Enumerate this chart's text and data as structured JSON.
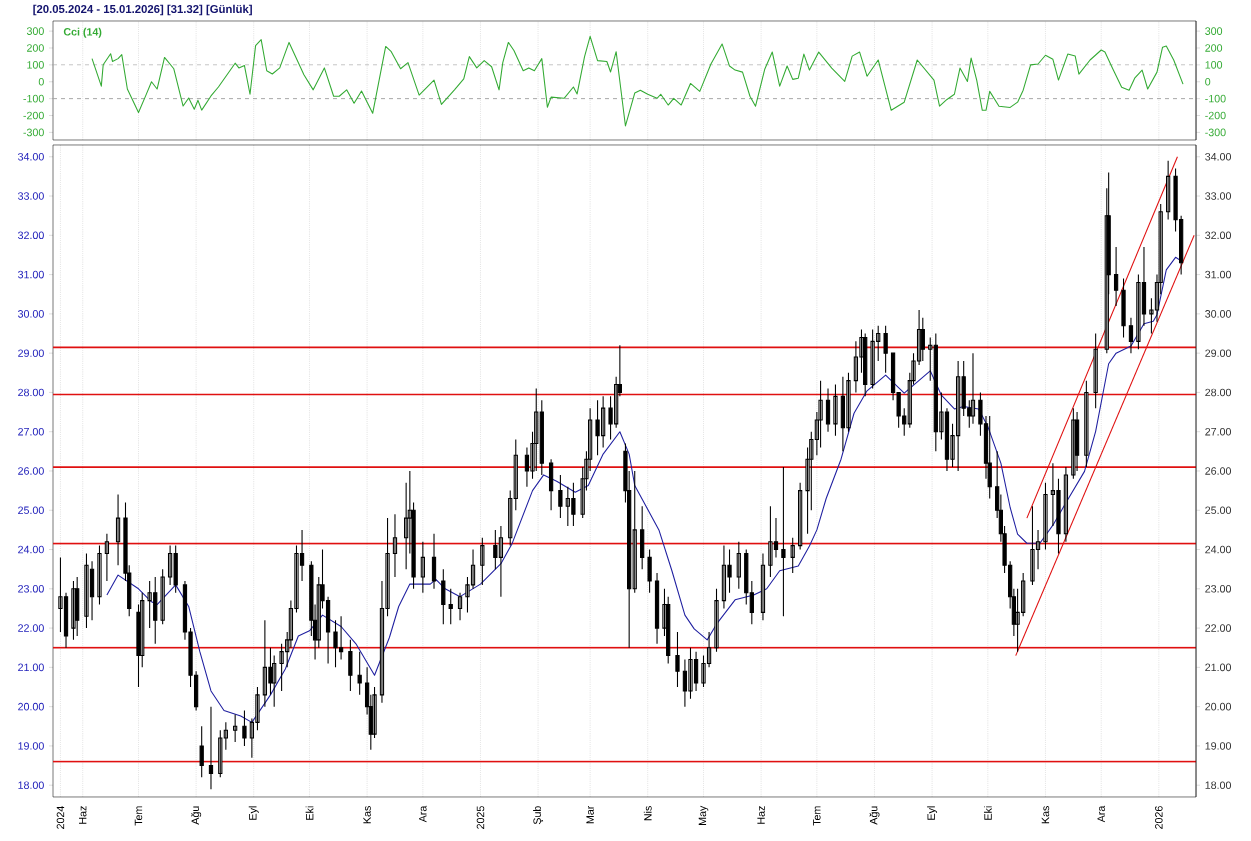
{
  "chart_data": [
    {
      "type": "line",
      "title": "[20.05.2024 - 15.01.2026]  [31.32]  [Günlük]",
      "legend": "top left",
      "grid": "x",
      "tick_labels": "y",
      "xlim": [
        "2024-05-16",
        "2026-01-21"
      ],
      "ylim": [
        -345,
        360
      ],
      "yticks": [
        -300,
        -200,
        -100,
        0,
        100,
        200,
        300
      ],
      "y2lim": [
        -345,
        360
      ],
      "y2ticks": [
        -300,
        -200,
        -100,
        0,
        100,
        200,
        300
      ],
      "xticks": [
        {
          "value": "2024-06-01",
          "label": null
        },
        {
          "value": "2024-07-01",
          "label": null
        },
        {
          "value": "2024-08-01",
          "label": null
        },
        {
          "value": "2024-09-01",
          "label": null
        },
        {
          "value": "2024-10-01",
          "label": null
        },
        {
          "value": "2024-11-01",
          "label": null
        },
        {
          "value": "2024-12-01",
          "label": null
        },
        {
          "value": "2025-01-01",
          "label": null
        },
        {
          "value": "2025-02-01",
          "label": null
        },
        {
          "value": "2025-03-01",
          "label": null
        },
        {
          "value": "2025-04-01",
          "label": null
        },
        {
          "value": "2025-05-01",
          "label": null
        },
        {
          "value": "2025-06-01",
          "label": null
        },
        {
          "value": "2025-07-01",
          "label": null
        },
        {
          "value": "2025-08-01",
          "label": null
        },
        {
          "value": "2025-09-01",
          "label": null
        },
        {
          "value": "2025-10-01",
          "label": null
        },
        {
          "value": "2025-11-01",
          "label": null
        },
        {
          "value": "2025-12-01",
          "label": null
        },
        {
          "value": "2026-01-01",
          "label": null
        }
      ],
      "ref_lines": [
        {
          "axis": "y",
          "value": 100,
          "label": null,
          "color": "#a0a0a0",
          "line_style": "dashed"
        },
        {
          "axis": "y",
          "value": -100,
          "label": null,
          "color": "#a0a0a0",
          "line_style": "dashed"
        }
      ],
      "x": [
        "2024-06-06",
        "2024-06-11",
        "2024-06-12",
        "2024-06-16",
        "2024-06-17",
        "2024-06-20",
        "2024-06-22",
        "2024-06-25",
        "2024-07-01",
        "2024-07-05",
        "2024-07-08",
        "2024-07-11",
        "2024-07-15",
        "2024-07-20",
        "2024-07-25",
        "2024-07-28",
        "2024-07-31",
        "2024-08-02",
        "2024-08-04",
        "2024-08-09",
        "2024-08-13",
        "2024-08-22",
        "2024-08-24",
        "2024-08-27",
        "2024-08-30",
        "2024-09-02",
        "2024-09-05",
        "2024-09-08",
        "2024-09-11",
        "2024-09-15",
        "2024-09-20",
        "2024-09-28",
        "2024-10-03",
        "2024-10-09",
        "2024-10-14",
        "2024-10-17",
        "2024-10-21",
        "2024-10-25",
        "2024-10-29",
        "2024-11-04",
        "2024-11-11",
        "2024-11-14",
        "2024-11-19",
        "2024-11-23",
        "2024-11-29",
        "2024-12-07",
        "2024-12-11",
        "2024-12-18",
        "2024-12-23",
        "2024-12-26",
        "2024-12-30",
        "2025-01-03",
        "2025-01-07",
        "2025-01-11",
        "2025-01-13",
        "2025-01-16",
        "2025-01-19",
        "2025-01-24",
        "2025-01-27",
        "2025-01-30",
        "2025-02-03",
        "2025-02-06",
        "2025-02-08",
        "2025-02-15",
        "2025-02-20",
        "2025-02-22",
        "2025-02-26",
        "2025-03-01",
        "2025-03-05",
        "2025-03-10",
        "2025-03-12",
        "2025-03-15",
        "2025-03-20",
        "2025-03-25",
        "2025-03-28",
        "2025-04-01",
        "2025-04-06",
        "2025-04-08",
        "2025-04-12",
        "2025-04-15",
        "2025-04-19",
        "2025-04-24",
        "2025-04-29",
        "2025-05-05",
        "2025-05-11",
        "2025-05-15",
        "2025-05-18",
        "2025-05-22",
        "2025-05-26",
        "2025-05-29",
        "2025-06-03",
        "2025-06-07",
        "2025-06-11",
        "2025-06-15",
        "2025-06-18",
        "2025-06-21",
        "2025-06-24",
        "2025-06-27",
        "2025-07-02",
        "2025-07-09",
        "2025-07-16",
        "2025-07-20",
        "2025-07-24",
        "2025-07-28",
        "2025-08-03",
        "2025-08-10",
        "2025-08-17",
        "2025-08-24",
        "2025-09-02",
        "2025-09-05",
        "2025-09-09",
        "2025-09-13",
        "2025-09-16",
        "2025-09-20",
        "2025-09-22",
        "2025-09-25",
        "2025-09-28",
        "2025-09-30",
        "2025-10-02",
        "2025-10-07",
        "2025-10-13",
        "2025-10-17",
        "2025-10-20",
        "2025-10-24",
        "2025-10-28",
        "2025-11-01",
        "2025-11-05",
        "2025-11-08",
        "2025-11-13",
        "2025-11-17",
        "2025-11-19",
        "2025-11-25",
        "2025-12-01",
        "2025-12-03",
        "2025-12-07",
        "2025-12-12",
        "2025-12-16",
        "2025-12-19",
        "2025-12-23",
        "2025-12-26",
        "2025-12-31",
        "2026-01-03",
        "2026-01-05",
        "2026-01-09",
        "2026-01-14"
      ],
      "series": [
        {
          "name": "Cci (14)",
          "color": "#33aa33",
          "values": [
            137,
            -26,
            101,
            166,
            120,
            137,
            161,
            -43,
            -182,
            -79,
            0,
            -43,
            144,
            77,
            -144,
            -96,
            -163,
            -110,
            -168,
            -84,
            -31,
            110,
            82,
            96,
            -74,
            214,
            250,
            65,
            46,
            82,
            233,
            41,
            -48,
            82,
            -86,
            -86,
            -48,
            -127,
            -55,
            -187,
            209,
            178,
            77,
            113,
            -79,
            10,
            -134,
            -48,
            17,
            149,
            82,
            125,
            89,
            -48,
            113,
            233,
            185,
            65,
            82,
            65,
            137,
            -151,
            -91,
            -98,
            -31,
            -72,
            149,
            269,
            125,
            120,
            58,
            178,
            -262,
            -67,
            -50,
            -74,
            -98,
            -74,
            -138,
            -98,
            -138,
            -10,
            -57,
            105,
            224,
            93,
            69,
            57,
            -86,
            -145,
            76,
            176,
            -26,
            93,
            14,
            21,
            164,
            69,
            176,
            81,
            2,
            152,
            176,
            33,
            129,
            -169,
            -121,
            129,
            10,
            -145,
            -105,
            -74,
            81,
            2,
            140,
            10,
            -169,
            -169,
            -57,
            -145,
            -152,
            -121,
            -50,
            100,
            105,
            157,
            133,
            10,
            164,
            152,
            45,
            129,
            188,
            176,
            81,
            -33,
            -50,
            21,
            69,
            -43,
            57,
            205,
            212,
            129,
            -14
          ]
        }
      ]
    },
    {
      "type": "candlestick",
      "color": "#000000",
      "grid": "x",
      "xlim": [
        "2024-05-16",
        "2026-01-21"
      ],
      "ylim": [
        17.7,
        34.3
      ],
      "yticks": [
        {
          "value": 18,
          "label": "18.00"
        },
        {
          "value": 19,
          "label": "19.00"
        },
        {
          "value": 20,
          "label": "20.00"
        },
        {
          "value": 21,
          "label": "21.00"
        },
        {
          "value": 22,
          "label": "22.00"
        },
        {
          "value": 23,
          "label": "23.00"
        },
        {
          "value": 24,
          "label": "24.00"
        },
        {
          "value": 25,
          "label": "25.00"
        },
        {
          "value": 26,
          "label": "26.00"
        },
        {
          "value": 27,
          "label": "27.00"
        },
        {
          "value": 28,
          "label": "28.00"
        },
        {
          "value": 29,
          "label": "29.00"
        },
        {
          "value": 30,
          "label": "30.00"
        },
        {
          "value": 31,
          "label": "31.00"
        },
        {
          "value": 32,
          "label": "32.00"
        },
        {
          "value": 33,
          "label": "33.00"
        },
        {
          "value": 34,
          "label": "34.00"
        }
      ],
      "y2lim": [
        17.7,
        34.3
      ],
      "y2ticks": [
        {
          "value": 18,
          "label": "18.00"
        },
        {
          "value": 19,
          "label": "19.00"
        },
        {
          "value": 20,
          "label": "20.00"
        },
        {
          "value": 21,
          "label": "21.00"
        },
        {
          "value": 22,
          "label": "22.00"
        },
        {
          "value": 23,
          "label": "23.00"
        },
        {
          "value": 24,
          "label": "24.00"
        },
        {
          "value": 25,
          "label": "25.00"
        },
        {
          "value": 26,
          "label": "26.00"
        },
        {
          "value": 27,
          "label": "27.00"
        },
        {
          "value": 28,
          "label": "28.00"
        },
        {
          "value": 29,
          "label": "29.00"
        },
        {
          "value": 30,
          "label": "30.00"
        },
        {
          "value": 31,
          "label": "31.00"
        },
        {
          "value": 32,
          "label": "32.00"
        },
        {
          "value": 33,
          "label": "33.00"
        },
        {
          "value": 34,
          "label": "34.00"
        }
      ],
      "xticks": [
        {
          "value": "2024-05-20",
          "label": "2024"
        },
        {
          "value": "2024-06-01",
          "label": "Haz"
        },
        {
          "value": "2024-07-01",
          "label": "Tem"
        },
        {
          "value": "2024-08-01",
          "label": "Ağu"
        },
        {
          "value": "2024-09-01",
          "label": "Eyl"
        },
        {
          "value": "2024-10-01",
          "label": "Eki"
        },
        {
          "value": "2024-11-01",
          "label": "Kas"
        },
        {
          "value": "2024-12-01",
          "label": "Ara"
        },
        {
          "value": "2025-01-01",
          "label": "2025"
        },
        {
          "value": "2025-02-01",
          "label": "Şub"
        },
        {
          "value": "2025-03-01",
          "label": "Mar"
        },
        {
          "value": "2025-04-01",
          "label": "Nis"
        },
        {
          "value": "2025-05-01",
          "label": "May"
        },
        {
          "value": "2025-06-01",
          "label": "Haz"
        },
        {
          "value": "2025-07-01",
          "label": "Tem"
        },
        {
          "value": "2025-08-01",
          "label": "Ağu"
        },
        {
          "value": "2025-09-01",
          "label": "Eyl"
        },
        {
          "value": "2025-10-01",
          "label": "Eki"
        },
        {
          "value": "2025-11-01",
          "label": "Kas"
        },
        {
          "value": "2025-12-01",
          "label": "Ara"
        },
        {
          "value": "2026-01-01",
          "label": "2026"
        }
      ],
      "ref_lines": [
        {
          "axis": "y",
          "value": 29.15,
          "label": null,
          "color": "#e01010"
        },
        {
          "axis": "y",
          "value": 27.95,
          "label": null,
          "color": "#e01010"
        },
        {
          "axis": "y",
          "value": 26.1,
          "label": null,
          "color": "#e01010"
        },
        {
          "axis": "y",
          "value": 24.15,
          "label": null,
          "color": "#e01010"
        },
        {
          "axis": "y",
          "value": 21.5,
          "label": null,
          "color": "#e01010"
        },
        {
          "axis": "y",
          "value": 18.6,
          "label": null,
          "color": "#e01010"
        }
      ],
      "x": [
        "2024-05-20",
        "2024-05-23",
        "2024-05-27",
        "2024-05-29",
        "2024-06-03",
        "2024-06-06",
        "2024-06-10",
        "2024-06-14",
        "2024-06-20",
        "2024-06-24",
        "2024-06-26",
        "2024-07-01",
        "2024-07-03",
        "2024-07-07",
        "2024-07-10",
        "2024-07-14",
        "2024-07-18",
        "2024-07-21",
        "2024-07-26",
        "2024-07-29",
        "2024-08-01",
        "2024-08-04",
        "2024-08-09",
        "2024-08-14",
        "2024-08-17",
        "2024-08-22",
        "2024-08-27",
        "2024-08-31",
        "2024-09-03",
        "2024-09-07",
        "2024-09-10",
        "2024-09-12",
        "2024-09-16",
        "2024-09-19",
        "2024-09-21",
        "2024-09-24",
        "2024-09-27",
        "2024-10-02",
        "2024-10-04",
        "2024-10-06",
        "2024-10-08",
        "2024-10-11",
        "2024-10-15",
        "2024-10-18",
        "2024-10-23",
        "2024-10-28",
        "2024-11-01",
        "2024-11-03",
        "2024-11-05",
        "2024-11-09",
        "2024-11-12",
        "2024-11-16",
        "2024-11-22",
        "2024-11-24",
        "2024-11-26",
        "2024-12-01",
        "2024-12-07",
        "2024-12-12",
        "2024-12-16",
        "2024-12-21",
        "2024-12-25",
        "2024-12-28",
        "2025-01-02",
        "2025-01-09",
        "2025-01-12",
        "2025-01-17",
        "2025-01-20",
        "2025-01-26",
        "2025-01-29",
        "2025-01-31",
        "2025-02-03",
        "2025-02-08",
        "2025-02-13",
        "2025-02-17",
        "2025-02-20",
        "2025-02-25",
        "2025-02-27",
        "2025-03-01",
        "2025-03-05",
        "2025-03-08",
        "2025-03-12",
        "2025-03-15",
        "2025-03-17",
        "2025-03-20",
        "2025-03-22",
        "2025-03-25",
        "2025-03-29",
        "2025-04-02",
        "2025-04-06",
        "2025-04-10",
        "2025-04-12",
        "2025-04-17",
        "2025-04-21",
        "2025-04-24",
        "2025-04-27",
        "2025-05-01",
        "2025-05-04",
        "2025-05-08",
        "2025-05-12",
        "2025-05-15",
        "2025-05-20",
        "2025-05-24",
        "2025-05-27",
        "2025-06-02",
        "2025-06-06",
        "2025-06-09",
        "2025-06-13",
        "2025-06-18",
        "2025-06-22",
        "2025-06-26",
        "2025-06-28",
        "2025-07-01",
        "2025-07-03",
        "2025-07-07",
        "2025-07-11",
        "2025-07-15",
        "2025-07-18",
        "2025-07-22",
        "2025-07-25",
        "2025-07-27",
        "2025-07-31",
        "2025-08-03",
        "2025-08-07",
        "2025-08-11",
        "2025-08-14",
        "2025-08-17",
        "2025-08-20",
        "2025-08-22",
        "2025-08-25",
        "2025-08-27",
        "2025-08-31",
        "2025-09-03",
        "2025-09-06",
        "2025-09-09",
        "2025-09-12",
        "2025-09-15",
        "2025-09-18",
        "2025-09-21",
        "2025-09-23",
        "2025-09-27",
        "2025-09-30",
        "2025-10-02",
        "2025-10-06",
        "2025-10-08",
        "2025-10-10",
        "2025-10-13",
        "2025-10-15",
        "2025-10-17",
        "2025-10-20",
        "2025-10-25",
        "2025-10-28",
        "2025-11-01",
        "2025-11-05",
        "2025-11-08",
        "2025-11-12",
        "2025-11-16",
        "2025-11-18",
        "2025-11-23",
        "2025-11-28",
        "2025-12-04",
        "2025-12-05",
        "2025-12-09",
        "2025-12-13",
        "2025-12-17",
        "2025-12-21",
        "2025-12-24",
        "2025-12-28",
        "2025-12-31",
        "2026-01-02",
        "2026-01-06",
        "2026-01-10",
        "2026-01-13"
      ],
      "ohlc": [
        [
          22.5,
          23.8,
          21.9,
          22.8
        ],
        [
          22.8,
          22.9,
          21.5,
          21.8
        ],
        [
          22.0,
          23.2,
          21.7,
          23.0
        ],
        [
          23.0,
          23.3,
          21.8,
          22.2
        ],
        [
          22.3,
          23.9,
          22.0,
          23.6
        ],
        [
          23.5,
          23.7,
          22.2,
          22.8
        ],
        [
          22.8,
          24.1,
          22.6,
          23.9
        ],
        [
          23.9,
          24.4,
          23.2,
          24.2
        ],
        [
          24.2,
          25.4,
          23.6,
          24.8
        ],
        [
          24.8,
          25.2,
          23.2,
          23.4
        ],
        [
          23.4,
          23.6,
          22.3,
          22.5
        ],
        [
          22.4,
          22.6,
          20.5,
          21.3
        ],
        [
          21.3,
          22.9,
          21.0,
          22.7
        ],
        [
          22.7,
          23.2,
          22.0,
          22.9
        ],
        [
          22.9,
          23.3,
          21.6,
          22.2
        ],
        [
          22.2,
          23.5,
          22.1,
          23.3
        ],
        [
          23.3,
          24.1,
          23.1,
          23.9
        ],
        [
          23.9,
          24.1,
          22.9,
          23.1
        ],
        [
          23.1,
          23.2,
          21.7,
          21.9
        ],
        [
          21.9,
          22.0,
          20.5,
          20.8
        ],
        [
          20.8,
          20.9,
          19.9,
          20.0
        ],
        [
          19.0,
          19.5,
          18.2,
          18.5
        ],
        [
          18.5,
          20.0,
          17.9,
          18.3
        ],
        [
          18.3,
          19.4,
          18.2,
          19.2
        ],
        [
          19.2,
          19.6,
          18.9,
          19.4
        ],
        [
          19.4,
          19.8,
          19.1,
          19.5
        ],
        [
          19.5,
          19.9,
          19.0,
          19.2
        ],
        [
          19.2,
          19.7,
          18.7,
          19.6
        ],
        [
          19.6,
          20.5,
          19.4,
          20.3
        ],
        [
          20.3,
          22.2,
          20.0,
          21.0
        ],
        [
          21.0,
          21.5,
          20.3,
          20.6
        ],
        [
          20.6,
          21.3,
          20.0,
          21.1
        ],
        [
          21.1,
          21.6,
          20.4,
          21.4
        ],
        [
          21.4,
          21.9,
          21.0,
          21.7
        ],
        [
          21.7,
          22.7,
          21.5,
          22.5
        ],
        [
          22.5,
          24.1,
          22.4,
          23.9
        ],
        [
          23.9,
          24.5,
          23.2,
          23.6
        ],
        [
          23.6,
          23.7,
          21.8,
          22.2
        ],
        [
          22.2,
          22.6,
          21.2,
          21.7
        ],
        [
          21.7,
          23.3,
          21.5,
          23.1
        ],
        [
          23.1,
          24.0,
          22.5,
          22.7
        ],
        [
          22.7,
          22.8,
          21.1,
          21.9
        ],
        [
          21.9,
          22.2,
          21.0,
          21.5
        ],
        [
          21.5,
          22.3,
          21.2,
          21.4
        ],
        [
          21.4,
          21.7,
          20.4,
          20.8
        ],
        [
          20.8,
          21.4,
          20.3,
          20.6
        ],
        [
          20.6,
          21.0,
          19.8,
          20.0
        ],
        [
          20.0,
          20.3,
          18.9,
          19.3
        ],
        [
          19.3,
          20.5,
          19.2,
          20.3
        ],
        [
          20.3,
          23.2,
          20.1,
          22.5
        ],
        [
          22.5,
          24.8,
          22.3,
          23.9
        ],
        [
          23.9,
          24.9,
          23.3,
          24.3
        ],
        [
          24.3,
          25.7,
          23.5,
          24.8
        ],
        [
          24.8,
          26.0,
          23.9,
          25.0
        ],
        [
          25.0,
          25.2,
          23.0,
          23.3
        ],
        [
          23.3,
          24.2,
          22.9,
          23.8
        ],
        [
          23.8,
          24.4,
          23.0,
          23.2
        ],
        [
          23.2,
          23.5,
          22.1,
          22.6
        ],
        [
          22.6,
          23.0,
          22.1,
          22.5
        ],
        [
          22.5,
          22.9,
          22.2,
          22.8
        ],
        [
          22.8,
          23.3,
          22.4,
          23.1
        ],
        [
          23.1,
          24.0,
          23.0,
          23.6
        ],
        [
          23.6,
          24.3,
          23.1,
          24.1
        ],
        [
          24.1,
          24.5,
          23.5,
          23.8
        ],
        [
          23.8,
          24.6,
          22.8,
          24.3
        ],
        [
          24.3,
          25.5,
          24.1,
          25.3
        ],
        [
          25.3,
          26.8,
          25.0,
          26.4
        ],
        [
          26.4,
          26.6,
          25.6,
          26.0
        ],
        [
          26.0,
          27.0,
          25.8,
          26.7
        ],
        [
          26.7,
          28.1,
          26.0,
          27.5
        ],
        [
          27.5,
          27.8,
          25.9,
          26.2
        ],
        [
          26.2,
          26.3,
          25.0,
          25.5
        ],
        [
          25.5,
          25.9,
          24.8,
          25.1
        ],
        [
          25.1,
          25.6,
          24.6,
          25.3
        ],
        [
          25.3,
          25.7,
          24.6,
          24.9
        ],
        [
          24.9,
          26.1,
          24.8,
          25.8
        ],
        [
          25.8,
          26.5,
          25.5,
          26.3
        ],
        [
          26.3,
          27.6,
          26.0,
          27.3
        ],
        [
          27.3,
          27.8,
          26.4,
          26.9
        ],
        [
          26.9,
          27.9,
          26.6,
          27.6
        ],
        [
          27.6,
          27.9,
          26.8,
          27.2
        ],
        [
          27.2,
          28.4,
          27.1,
          28.2
        ],
        [
          28.2,
          29.2,
          27.9,
          28.0
        ],
        [
          26.5,
          26.7,
          25.2,
          25.5
        ],
        [
          25.5,
          26.0,
          21.5,
          23.0
        ],
        [
          23.0,
          26.0,
          22.9,
          24.5
        ],
        [
          24.5,
          25.1,
          23.5,
          23.8
        ],
        [
          23.8,
          24.0,
          22.9,
          23.2
        ],
        [
          23.2,
          23.4,
          21.6,
          22.0
        ],
        [
          22.0,
          23.0,
          21.8,
          22.6
        ],
        [
          22.6,
          22.8,
          21.1,
          21.3
        ],
        [
          21.3,
          21.9,
          20.5,
          20.9
        ],
        [
          20.9,
          21.2,
          20.0,
          20.4
        ],
        [
          20.4,
          21.5,
          20.2,
          21.2
        ],
        [
          21.2,
          21.4,
          20.4,
          20.6
        ],
        [
          20.6,
          21.3,
          20.5,
          21.1
        ],
        [
          21.1,
          21.9,
          21.0,
          21.5
        ],
        [
          21.5,
          23.0,
          21.4,
          22.7
        ],
        [
          22.7,
          24.1,
          22.5,
          23.6
        ],
        [
          23.6,
          24.0,
          22.9,
          23.3
        ],
        [
          23.3,
          24.2,
          23.0,
          23.9
        ],
        [
          23.9,
          24.0,
          22.6,
          22.9
        ],
        [
          22.9,
          23.2,
          22.1,
          22.4
        ],
        [
          22.4,
          23.9,
          22.2,
          23.6
        ],
        [
          23.6,
          25.1,
          23.3,
          24.2
        ],
        [
          24.2,
          24.8,
          23.8,
          24.0
        ],
        [
          24.0,
          26.1,
          22.3,
          23.8
        ],
        [
          23.8,
          24.3,
          23.4,
          24.1
        ],
        [
          24.1,
          25.7,
          24.0,
          25.5
        ],
        [
          25.5,
          26.6,
          24.4,
          26.3
        ],
        [
          26.3,
          27.0,
          25.0,
          26.8
        ],
        [
          26.8,
          27.5,
          26.4,
          27.3
        ],
        [
          27.3,
          28.3,
          26.6,
          27.8
        ],
        [
          27.8,
          28.1,
          27.0,
          27.2
        ],
        [
          27.2,
          28.2,
          26.9,
          27.9
        ],
        [
          27.9,
          28.4,
          26.5,
          27.1
        ],
        [
          27.1,
          28.5,
          27.0,
          28.3
        ],
        [
          28.3,
          29.3,
          28.0,
          28.9
        ],
        [
          28.9,
          29.6,
          28.5,
          29.4
        ],
        [
          29.4,
          29.5,
          27.9,
          28.2
        ],
        [
          28.2,
          29.6,
          28.1,
          29.3
        ],
        [
          29.3,
          29.7,
          28.8,
          29.5
        ],
        [
          29.5,
          29.7,
          28.5,
          29.0
        ],
        [
          29.0,
          29.0,
          27.8,
          28.0
        ],
        [
          28.0,
          28.0,
          27.1,
          27.4
        ],
        [
          27.4,
          27.6,
          26.9,
          27.2
        ],
        [
          27.2,
          28.5,
          27.1,
          28.3
        ],
        [
          28.3,
          29.0,
          28.2,
          28.8
        ],
        [
          28.8,
          30.1,
          28.7,
          29.6
        ],
        [
          29.6,
          29.9,
          28.8,
          29.1
        ],
        [
          29.1,
          29.4,
          28.3,
          29.2
        ],
        [
          29.2,
          29.5,
          26.5,
          27.0
        ],
        [
          27.0,
          28.0,
          26.8,
          27.5
        ],
        [
          27.5,
          27.6,
          26.0,
          26.3
        ],
        [
          26.3,
          27.2,
          26.1,
          26.9
        ],
        [
          26.9,
          28.8,
          26.0,
          28.4
        ],
        [
          28.4,
          28.8,
          27.4,
          27.6
        ],
        [
          27.6,
          27.8,
          27.1,
          27.4
        ],
        [
          27.4,
          29.0,
          27.2,
          27.8
        ],
        [
          27.8,
          28.0,
          26.9,
          27.2
        ],
        [
          27.2,
          27.4,
          25.8,
          26.2
        ],
        [
          26.2,
          27.4,
          25.3,
          25.6
        ],
        [
          25.6,
          26.5,
          24.8,
          25.0
        ],
        [
          25.0,
          25.4,
          24.2,
          24.4
        ],
        [
          24.4,
          24.6,
          23.4,
          23.6
        ],
        [
          23.6,
          23.7,
          22.5,
          22.8
        ],
        [
          22.8,
          23.0,
          21.8,
          22.1
        ],
        [
          22.1,
          23.0,
          21.4,
          22.4
        ],
        [
          22.4,
          23.4,
          22.3,
          23.2
        ],
        [
          23.2,
          25.1,
          23.1,
          24.0
        ],
        [
          24.0,
          24.5,
          23.5,
          24.2
        ],
        [
          24.2,
          25.7,
          24.0,
          25.4
        ],
        [
          25.4,
          26.2,
          24.6,
          25.5
        ],
        [
          25.5,
          25.8,
          23.9,
          24.4
        ],
        [
          24.4,
          26.1,
          24.2,
          25.9
        ],
        [
          25.9,
          27.6,
          25.8,
          27.3
        ],
        [
          27.3,
          27.5,
          26.0,
          26.4
        ],
        [
          26.4,
          28.3,
          26.1,
          28.0
        ],
        [
          28.0,
          29.5,
          27.6,
          29.1
        ],
        [
          29.1,
          33.2,
          29.0,
          32.5
        ],
        [
          32.5,
          33.6,
          30.5,
          31.0
        ],
        [
          31.0,
          31.7,
          30.2,
          30.6
        ],
        [
          30.6,
          30.9,
          29.4,
          29.7
        ],
        [
          29.7,
          29.9,
          29.0,
          29.3
        ],
        [
          29.3,
          31.0,
          29.1,
          30.8
        ],
        [
          30.8,
          31.7,
          29.7,
          30.0
        ],
        [
          30.0,
          30.4,
          29.5,
          30.1
        ],
        [
          30.1,
          31.0,
          29.8,
          30.8
        ],
        [
          30.8,
          32.8,
          30.5,
          32.6
        ],
        [
          32.6,
          33.9,
          32.4,
          33.5
        ],
        [
          33.5,
          33.7,
          32.1,
          32.4
        ],
        [
          32.4,
          32.5,
          31.0,
          31.3
        ]
      ],
      "series": [
        {
          "type": "line",
          "color": "#1f1fa0",
          "x": [
            "2024-06-14",
            "2024-06-20",
            "2024-07-01",
            "2024-07-08",
            "2024-07-11",
            "2024-07-21",
            "2024-07-28",
            "2024-08-03",
            "2024-08-09",
            "2024-08-16",
            "2024-08-25",
            "2024-08-31",
            "2024-09-10",
            "2024-09-18",
            "2024-09-25",
            "2024-10-01",
            "2024-10-08",
            "2024-10-18",
            "2024-10-26",
            "2024-11-05",
            "2024-11-13",
            "2024-11-18",
            "2024-11-24",
            "2024-12-05",
            "2024-12-08",
            "2024-12-13",
            "2024-12-21",
            "2025-01-01",
            "2025-01-12",
            "2025-01-18",
            "2025-01-29",
            "2025-02-04",
            "2025-02-11",
            "2025-02-21",
            "2025-02-28",
            "2025-03-08",
            "2025-03-17",
            "2025-03-22",
            "2025-03-25",
            "2025-04-07",
            "2025-04-14",
            "2025-04-21",
            "2025-04-26",
            "2025-05-03",
            "2025-05-08",
            "2025-05-18",
            "2025-05-28",
            "2025-06-04",
            "2025-06-11",
            "2025-06-21",
            "2025-06-27",
            "2025-07-01",
            "2025-07-06",
            "2025-07-14",
            "2025-07-21",
            "2025-07-28",
            "2025-08-07",
            "2025-08-17",
            "2025-08-31",
            "2025-09-06",
            "2025-09-13",
            "2025-09-18",
            "2025-09-26",
            "2025-10-01",
            "2025-10-08",
            "2025-10-13",
            "2025-10-17",
            "2025-10-22",
            "2025-10-29",
            "2025-11-05",
            "2025-11-12",
            "2025-11-22",
            "2025-11-28",
            "2025-12-05",
            "2025-12-09",
            "2025-12-17",
            "2025-12-24",
            "2025-12-29",
            "2025-12-31",
            "2026-01-05",
            "2026-01-10",
            "2026-01-13"
          ],
          "values": [
            22.84,
            23.35,
            23.0,
            22.67,
            22.6,
            23.1,
            22.55,
            21.4,
            20.4,
            19.9,
            19.76,
            19.6,
            20.3,
            20.96,
            21.8,
            21.93,
            22.33,
            22.04,
            21.6,
            20.8,
            21.76,
            22.55,
            23.12,
            23.12,
            23.24,
            23.0,
            22.8,
            23.12,
            23.64,
            24.15,
            25.5,
            25.9,
            25.74,
            25.46,
            25.63,
            26.43,
            27.0,
            26.43,
            25.63,
            24.5,
            23.46,
            22.33,
            21.98,
            21.7,
            22.1,
            22.72,
            22.84,
            23.0,
            23.46,
            23.58,
            24.09,
            24.5,
            25.3,
            26.3,
            27.47,
            28.04,
            28.44,
            27.98,
            28.55,
            27.93,
            27.58,
            27.64,
            27.58,
            27.13,
            26.2,
            25.07,
            24.39,
            24.16,
            24.16,
            24.62,
            25.19,
            25.99,
            27.01,
            28.73,
            29.0,
            29.18,
            29.75,
            29.81,
            29.98,
            31.12,
            31.44,
            31.35
          ]
        },
        {
          "type": "line",
          "color": "#e01010",
          "x": [
            "2025-10-22",
            "2026-01-11"
          ],
          "values": [
            24.8,
            34.0
          ]
        },
        {
          "type": "line",
          "color": "#e01010",
          "x": [
            "2025-10-16",
            "2026-01-20"
          ],
          "values": [
            21.3,
            32.0
          ]
        }
      ]
    }
  ]
}
